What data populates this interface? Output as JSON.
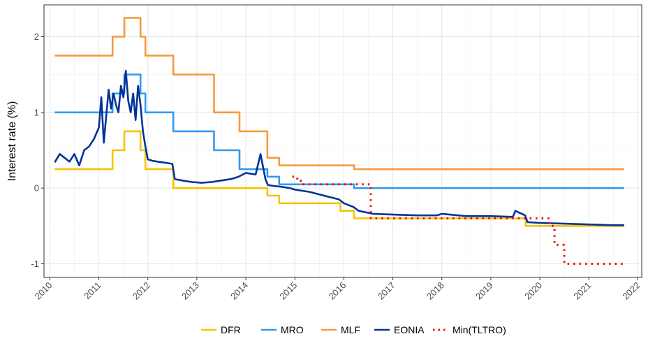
{
  "chart_data": {
    "type": "line",
    "title": "",
    "xlabel": "",
    "ylabel": "Interest rate (%)",
    "xlim": [
      2009.88,
      2022.08
    ],
    "ylim": [
      -1.18,
      2.42
    ],
    "x_ticks": [
      2010,
      2011,
      2012,
      2013,
      2014,
      2015,
      2016,
      2017,
      2018,
      2019,
      2020,
      2021,
      2022
    ],
    "x_tick_labels": [
      "2010",
      "2011",
      "2012",
      "2013",
      "2014",
      "2015",
      "2016",
      "2017",
      "2018",
      "2019",
      "2020",
      "2021",
      "2022"
    ],
    "y_ticks": [
      -1,
      0,
      1,
      2
    ],
    "y_tick_labels": [
      "-1",
      "0",
      "1",
      "2"
    ],
    "grid": true,
    "legend_position": "bottom",
    "series": [
      {
        "name": "DFR",
        "color": "#F5C400",
        "style": "solid",
        "step": true,
        "x": [
          2010.1,
          2011.28,
          2011.52,
          2011.85,
          2011.95,
          2012.52,
          2013.35,
          2013.87,
          2014.44,
          2014.68,
          2015.93,
          2016.21,
          2019.71,
          2021.72
        ],
        "y": [
          0.25,
          0.5,
          0.75,
          0.5,
          0.25,
          0.0,
          0.0,
          0.0,
          -0.1,
          -0.2,
          -0.3,
          -0.4,
          -0.5,
          -0.5
        ]
      },
      {
        "name": "MRO",
        "color": "#3399EE",
        "style": "solid",
        "step": true,
        "x": [
          2010.1,
          2011.28,
          2011.52,
          2011.85,
          2011.95,
          2012.52,
          2013.35,
          2013.87,
          2014.44,
          2014.68,
          2016.21,
          2021.72
        ],
        "y": [
          1.0,
          1.25,
          1.5,
          1.25,
          1.0,
          0.75,
          0.5,
          0.25,
          0.15,
          0.05,
          0.0,
          0.0
        ]
      },
      {
        "name": "MLF",
        "color": "#F59A3C",
        "style": "solid",
        "step": true,
        "x": [
          2010.1,
          2011.28,
          2011.52,
          2011.85,
          2011.95,
          2012.52,
          2013.35,
          2013.87,
          2014.44,
          2014.68,
          2015.93,
          2016.21,
          2021.72
        ],
        "y": [
          1.75,
          2.0,
          2.25,
          2.0,
          1.75,
          1.5,
          1.0,
          0.75,
          0.4,
          0.3,
          0.3,
          0.25,
          0.25
        ]
      },
      {
        "name": "EONIA",
        "color": "#003399",
        "style": "solid",
        "step": false,
        "x": [
          2010.1,
          2010.2,
          2010.3,
          2010.4,
          2010.5,
          2010.6,
          2010.7,
          2010.8,
          2010.9,
          2011.0,
          2011.05,
          2011.1,
          2011.15,
          2011.2,
          2011.25,
          2011.3,
          2011.35,
          2011.4,
          2011.45,
          2011.5,
          2011.55,
          2011.6,
          2011.65,
          2011.7,
          2011.75,
          2011.8,
          2011.85,
          2011.9,
          2011.95,
          2012.0,
          2012.1,
          2012.2,
          2012.3,
          2012.4,
          2012.5,
          2012.55,
          2012.7,
          2012.9,
          2013.1,
          2013.3,
          2013.5,
          2013.7,
          2013.85,
          2014.0,
          2014.2,
          2014.3,
          2014.4,
          2014.45,
          2014.55,
          2014.7,
          2014.9,
          2015.0,
          2015.3,
          2015.6,
          2015.9,
          2016.0,
          2016.2,
          2016.3,
          2016.6,
          2017.0,
          2017.5,
          2017.9,
          2018.0,
          2018.5,
          2019.0,
          2019.45,
          2019.5,
          2019.7,
          2019.75,
          2020.0,
          2020.5,
          2021.0,
          2021.5,
          2021.72
        ],
        "y": [
          0.34,
          0.45,
          0.4,
          0.35,
          0.45,
          0.3,
          0.5,
          0.55,
          0.65,
          0.8,
          1.2,
          0.6,
          0.95,
          1.3,
          1.05,
          1.25,
          1.1,
          1.0,
          1.35,
          1.2,
          1.55,
          1.15,
          1.0,
          1.25,
          0.9,
          1.35,
          1.1,
          0.75,
          0.55,
          0.38,
          0.36,
          0.35,
          0.34,
          0.33,
          0.32,
          0.12,
          0.1,
          0.08,
          0.07,
          0.08,
          0.1,
          0.12,
          0.15,
          0.2,
          0.18,
          0.45,
          0.12,
          0.04,
          0.03,
          0.02,
          0.0,
          -0.02,
          -0.05,
          -0.1,
          -0.15,
          -0.2,
          -0.25,
          -0.3,
          -0.34,
          -0.35,
          -0.36,
          -0.36,
          -0.34,
          -0.37,
          -0.37,
          -0.38,
          -0.3,
          -0.36,
          -0.45,
          -0.46,
          -0.47,
          -0.48,
          -0.49,
          -0.49
        ]
      },
      {
        "name": "Min(TLTRO)",
        "color": "#EE1111",
        "style": "dotted",
        "step": true,
        "x": [
          2014.95,
          2015.05,
          2015.12,
          2016.5,
          2016.55,
          2019.71,
          2020.2,
          2020.3,
          2020.5,
          2021.72
        ],
        "y": [
          0.15,
          0.1,
          0.05,
          0.05,
          -0.4,
          -0.4,
          -0.5,
          -0.75,
          -1.0,
          -1.0
        ]
      }
    ],
    "annotations": []
  }
}
